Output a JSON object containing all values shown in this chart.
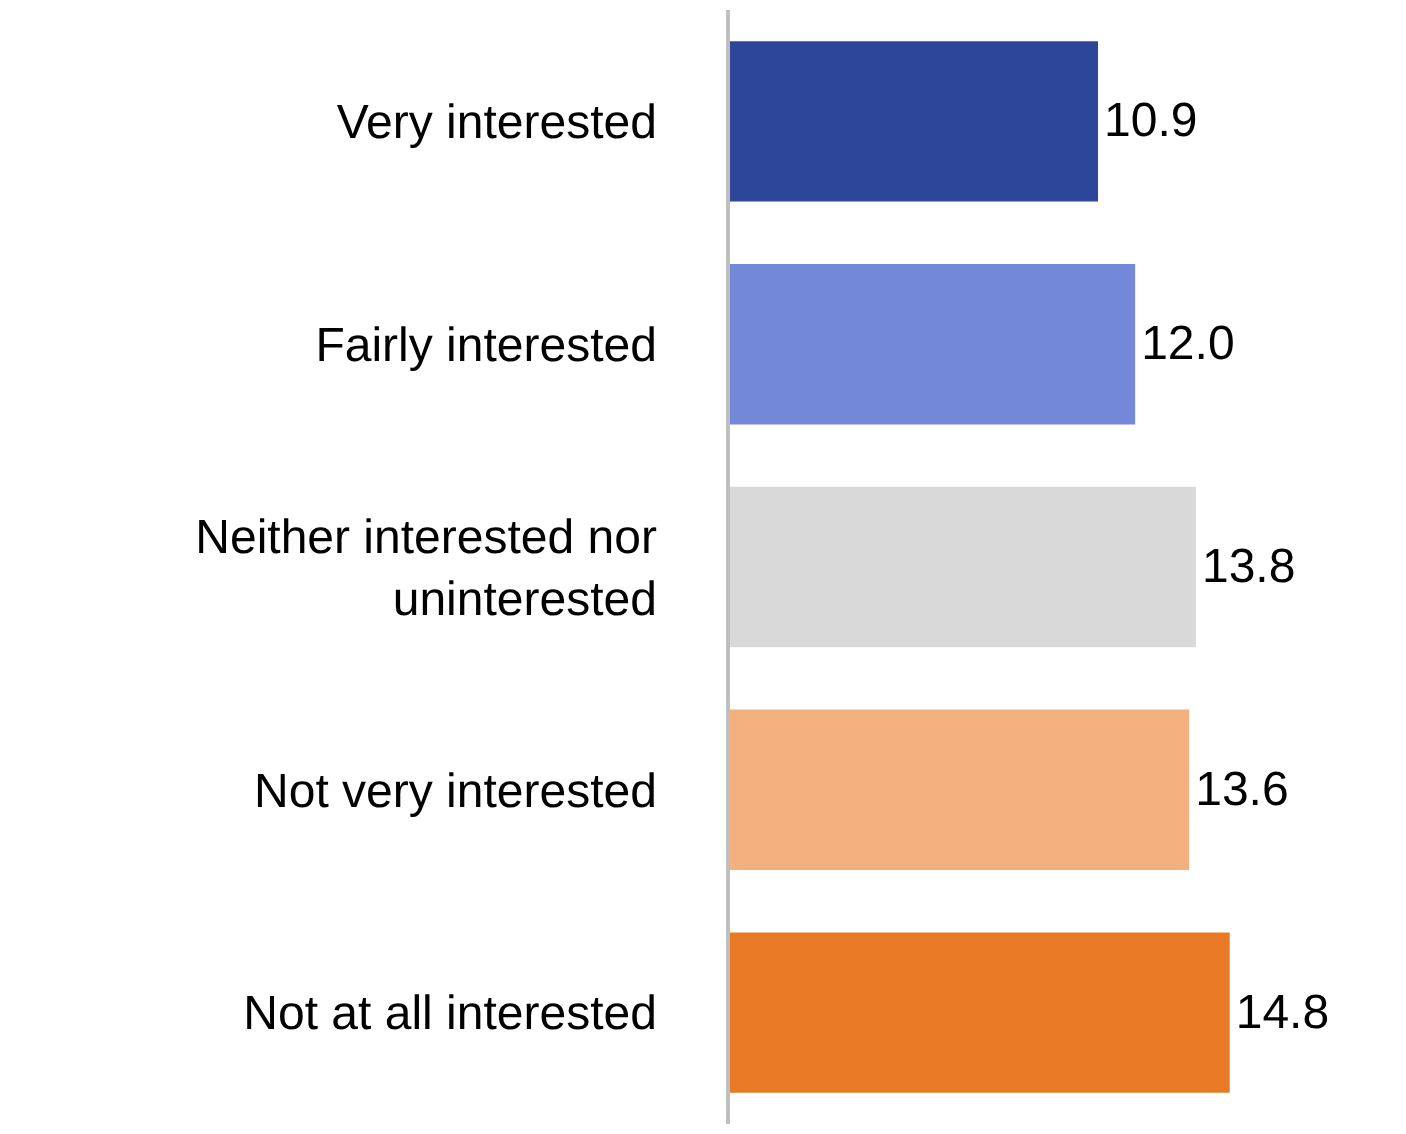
{
  "chart_data": {
    "type": "bar",
    "orientation": "horizontal",
    "categories": [
      "Very interested",
      "Fairly interested",
      "Neither interested nor uninterested",
      "Not very interested",
      "Not at all interested"
    ],
    "values": [
      10.9,
      12.0,
      13.8,
      13.6,
      14.8
    ],
    "value_labels": [
      "10.9",
      "12.0",
      "13.8",
      "13.6",
      "14.8"
    ],
    "colors": [
      "#2e4699",
      "#7388d8",
      "#d9d9d9",
      "#f2b07e",
      "#e87a25"
    ],
    "tick_labels": "y"
  }
}
